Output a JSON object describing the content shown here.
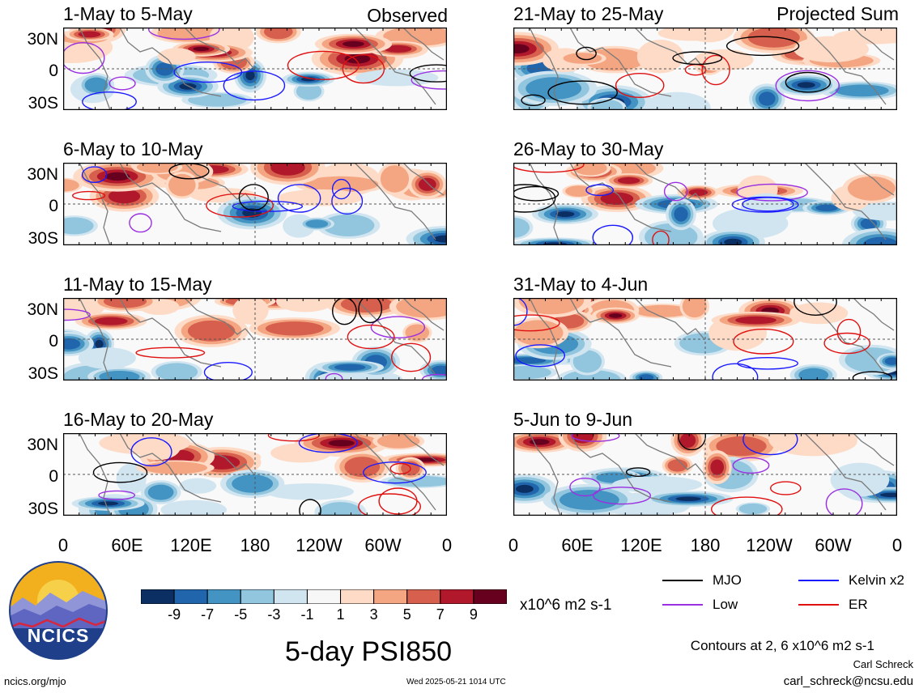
{
  "corner_labels": {
    "left": "Observed",
    "right": "Projected Sum"
  },
  "chart_data": {
    "type": "heatmap",
    "title": "5-day PSI850",
    "units": "x10^6 m2 s-1",
    "y_ticks": [
      "30N",
      "0",
      "30S"
    ],
    "x_ticks": [
      "0",
      "60E",
      "120E",
      "180",
      "120W",
      "60W",
      "0"
    ],
    "colorbar": {
      "labels": [
        "-9",
        "-7",
        "-5",
        "-3",
        "-1",
        "1",
        "3",
        "5",
        "7",
        "9"
      ],
      "colors": [
        "#0b2f63",
        "#2166ac",
        "#4393c3",
        "#92c5de",
        "#d1e5f0",
        "#f7f7f7",
        "#fddbc7",
        "#f4a582",
        "#d6604d",
        "#b2182b",
        "#67001f"
      ]
    },
    "legend": [
      {
        "label": "MJO",
        "color": "#000000"
      },
      {
        "label": "Kelvin x2",
        "color": "#1a1aff"
      },
      {
        "label": "Low",
        "color": "#9b30e0"
      },
      {
        "label": "ER",
        "color": "#e01010"
      }
    ],
    "contour_note": "Contours at 2, 6 x10^6 m2 s-1",
    "panels": [
      {
        "title": "1-May to 5-May",
        "group": "Observed"
      },
      {
        "title": "6-May to 10-May",
        "group": "Observed"
      },
      {
        "title": "11-May to 15-May",
        "group": "Observed"
      },
      {
        "title": "16-May to 20-May",
        "group": "Observed"
      },
      {
        "title": "21-May to 25-May",
        "group": "Projected Sum"
      },
      {
        "title": "26-May to 30-May",
        "group": "Projected Sum"
      },
      {
        "title": "31-May to 4-Jun",
        "group": "Projected Sum"
      },
      {
        "title": "5-Jun to 9-Jun",
        "group": "Projected Sum"
      }
    ]
  },
  "footer": {
    "logo_text": "NCICS",
    "url": "ncics.org/mjo",
    "timestamp": "Wed 2025-05-21 1014 UTC",
    "author": "Carl Schreck",
    "email": "carl_schreck@ncsu.edu"
  }
}
